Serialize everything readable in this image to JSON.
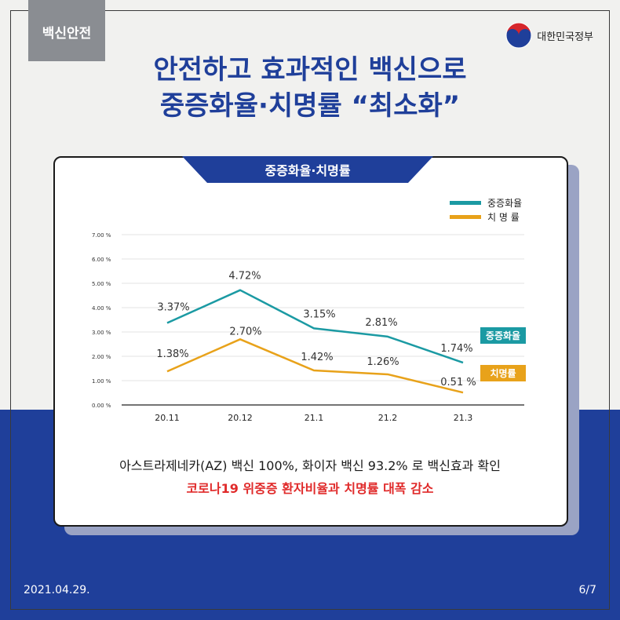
{
  "tag": "백신안전",
  "org_name": "대한민국정부",
  "title_line1": "안전하고 효과적인 백신으로",
  "title_line2": "중증화율·치명률 “최소화”",
  "card_title": "중증화율·치명률",
  "colors": {
    "severe": "#1b9aa3",
    "fatality": "#e8a21a",
    "brand": "#1f3f9a",
    "caption_red": "#e02a2a"
  },
  "chart_data": {
    "type": "line",
    "categories": [
      "20.11",
      "20.12",
      "21.1",
      "21.2",
      "21.3"
    ],
    "ylim": [
      0,
      7
    ],
    "yticks": [
      "0.00 %",
      "1.00 %",
      "2.00 %",
      "3.00 %",
      "4.00 %",
      "5.00 %",
      "6.00 %",
      "7.00 %"
    ],
    "legend_position": "top-right",
    "series": [
      {
        "name": "중증화율",
        "legend_label": "중증화율",
        "end_label": "중증화율",
        "color": "#1b9aa3",
        "values": [
          3.37,
          4.72,
          3.15,
          2.81,
          1.74
        ],
        "labels": [
          "3.37%",
          "4.72%",
          "3.15%",
          "2.81%",
          "1.74%"
        ]
      },
      {
        "name": "치명률",
        "legend_label": "치 명 률",
        "end_label": "치명률",
        "color": "#e8a21a",
        "values": [
          1.38,
          2.7,
          1.42,
          1.26,
          0.51
        ],
        "labels": [
          "1.38%",
          "2.70%",
          "1.42%",
          "1.26%",
          "0.51 %"
        ]
      }
    ]
  },
  "caption_line1": "아스트라제네카(AZ) 백신 100%, 화이자 백신 93.2% 로 백신효과 확인",
  "caption_line2": "코로나19 위중증 환자비율과 치명률 대폭 감소",
  "date": "2021.04.29.",
  "page": "6/7"
}
